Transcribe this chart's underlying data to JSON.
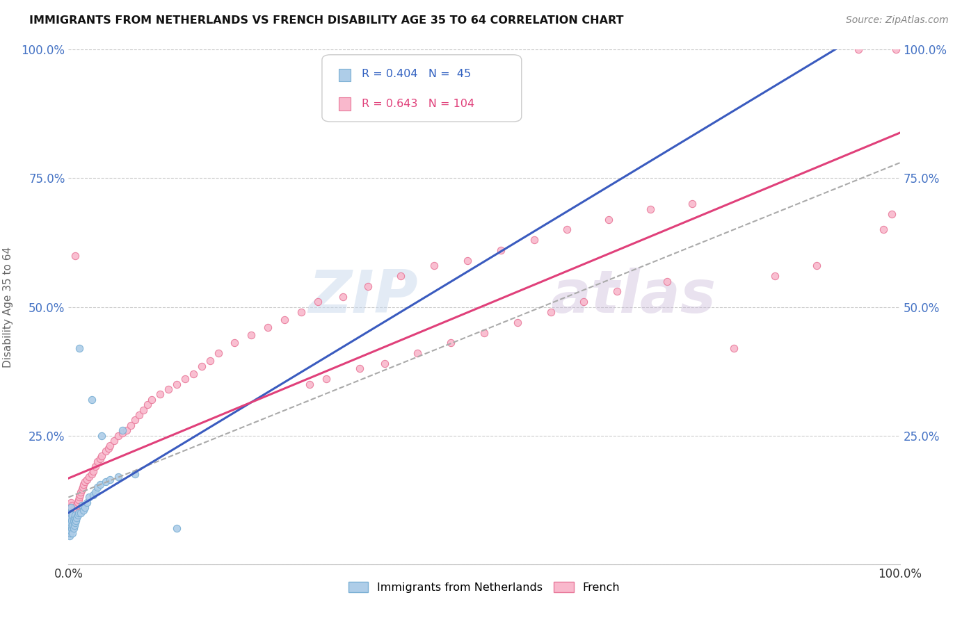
{
  "title": "IMMIGRANTS FROM NETHERLANDS VS FRENCH DISABILITY AGE 35 TO 64 CORRELATION CHART",
  "source": "Source: ZipAtlas.com",
  "ylabel": "Disability Age 35 to 64",
  "xlim": [
    0.0,
    1.0
  ],
  "ylim": [
    0.0,
    1.0
  ],
  "ytick_positions": [
    0.0,
    0.25,
    0.5,
    0.75,
    1.0
  ],
  "netherlands_color": "#aecde8",
  "netherlands_edge_color": "#7aafd4",
  "french_color": "#f9b8cc",
  "french_edge_color": "#e8799a",
  "netherlands_line_color": "#3a5bbf",
  "french_line_color": "#e0407a",
  "dashed_line_color": "#aaaaaa",
  "legend_R_netherlands": "0.404",
  "legend_N_netherlands": " 45",
  "legend_R_french": "0.643",
  "legend_N_french": "104",
  "watermark_zip": "ZIP",
  "watermark_atlas": "atlas",
  "nl_x": [
    0.001,
    0.001,
    0.001,
    0.002,
    0.002,
    0.002,
    0.002,
    0.003,
    0.003,
    0.003,
    0.003,
    0.004,
    0.004,
    0.005,
    0.005,
    0.005,
    0.006,
    0.006,
    0.007,
    0.007,
    0.008,
    0.008,
    0.009,
    0.01,
    0.011,
    0.012,
    0.013,
    0.015,
    0.016,
    0.018,
    0.02,
    0.022,
    0.025,
    0.028,
    0.03,
    0.032,
    0.035,
    0.038,
    0.04,
    0.045,
    0.05,
    0.06,
    0.065,
    0.08,
    0.13
  ],
  "nl_y": [
    0.055,
    0.07,
    0.08,
    0.06,
    0.075,
    0.085,
    0.1,
    0.065,
    0.08,
    0.09,
    0.11,
    0.07,
    0.085,
    0.06,
    0.075,
    0.095,
    0.07,
    0.085,
    0.075,
    0.09,
    0.08,
    0.095,
    0.085,
    0.09,
    0.095,
    0.1,
    0.42,
    0.1,
    0.115,
    0.105,
    0.11,
    0.12,
    0.13,
    0.32,
    0.135,
    0.14,
    0.15,
    0.155,
    0.25,
    0.16,
    0.165,
    0.17,
    0.26,
    0.175,
    0.07
  ],
  "fr_x": [
    0.0,
    0.0,
    0.001,
    0.001,
    0.001,
    0.001,
    0.001,
    0.002,
    0.002,
    0.002,
    0.002,
    0.003,
    0.003,
    0.003,
    0.003,
    0.004,
    0.004,
    0.004,
    0.005,
    0.005,
    0.005,
    0.006,
    0.006,
    0.007,
    0.007,
    0.008,
    0.008,
    0.009,
    0.01,
    0.01,
    0.011,
    0.012,
    0.013,
    0.014,
    0.015,
    0.016,
    0.017,
    0.018,
    0.02,
    0.022,
    0.025,
    0.028,
    0.03,
    0.032,
    0.035,
    0.038,
    0.04,
    0.045,
    0.048,
    0.05,
    0.055,
    0.06,
    0.065,
    0.07,
    0.075,
    0.08,
    0.085,
    0.09,
    0.095,
    0.1,
    0.11,
    0.12,
    0.13,
    0.14,
    0.15,
    0.16,
    0.17,
    0.18,
    0.2,
    0.22,
    0.24,
    0.26,
    0.28,
    0.3,
    0.33,
    0.36,
    0.4,
    0.44,
    0.48,
    0.52,
    0.56,
    0.6,
    0.65,
    0.7,
    0.75,
    0.8,
    0.85,
    0.9,
    0.95,
    0.98,
    0.99,
    0.995,
    0.29,
    0.31,
    0.35,
    0.38,
    0.42,
    0.46,
    0.5,
    0.54,
    0.58,
    0.62,
    0.66,
    0.72
  ],
  "fr_y": [
    0.06,
    0.08,
    0.065,
    0.075,
    0.085,
    0.095,
    0.11,
    0.07,
    0.085,
    0.1,
    0.115,
    0.075,
    0.09,
    0.105,
    0.12,
    0.08,
    0.095,
    0.11,
    0.085,
    0.1,
    0.115,
    0.09,
    0.105,
    0.095,
    0.11,
    0.1,
    0.6,
    0.11,
    0.105,
    0.115,
    0.12,
    0.125,
    0.13,
    0.135,
    0.14,
    0.145,
    0.15,
    0.155,
    0.16,
    0.165,
    0.17,
    0.175,
    0.18,
    0.19,
    0.2,
    0.205,
    0.21,
    0.22,
    0.225,
    0.23,
    0.24,
    0.25,
    0.255,
    0.26,
    0.27,
    0.28,
    0.29,
    0.3,
    0.31,
    0.32,
    0.33,
    0.34,
    0.35,
    0.36,
    0.37,
    0.385,
    0.395,
    0.41,
    0.43,
    0.445,
    0.46,
    0.475,
    0.49,
    0.51,
    0.52,
    0.54,
    0.56,
    0.58,
    0.59,
    0.61,
    0.63,
    0.65,
    0.67,
    0.69,
    0.7,
    0.42,
    0.56,
    0.58,
    1.0,
    0.65,
    0.68,
    1.0,
    0.35,
    0.36,
    0.38,
    0.39,
    0.41,
    0.43,
    0.45,
    0.47,
    0.49,
    0.51,
    0.53,
    0.55
  ]
}
